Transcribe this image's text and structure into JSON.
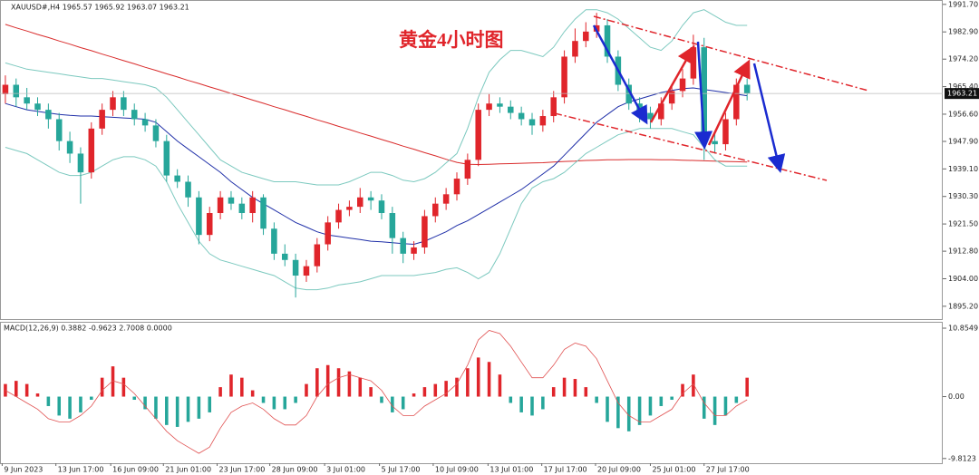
{
  "header": "XAUUSD#,H4  1965.57 1965.92 1963.07 1963.21",
  "chart_data": [
    {
      "type": "candlestick",
      "annotation": "黄金4小时图",
      "up_color": "#e0252b",
      "down_color": "#26a69a",
      "xlim": [
        -0.5,
        87.2
      ],
      "ylim": [
        1891.1,
        1993.1
      ],
      "yticks": [
        {
          "value": 1991.7,
          "label": "1991.70"
        },
        {
          "value": 1982.9,
          "label": "1982.90"
        },
        {
          "value": 1974.2,
          "label": "1974.20"
        },
        {
          "value": 1965.4,
          "label": "1965.40"
        },
        {
          "value": 1956.6,
          "label": "1956.60"
        },
        {
          "value": 1947.9,
          "label": "1947.90"
        },
        {
          "value": 1939.1,
          "label": "1939.10"
        },
        {
          "value": 1930.3,
          "label": "1930.30"
        },
        {
          "value": 1921.5,
          "label": "1921.50"
        },
        {
          "value": 1912.8,
          "label": "1912.80"
        },
        {
          "value": 1904,
          "label": "1904.00"
        },
        {
          "value": 1895.2,
          "label": "1895.20"
        }
      ],
      "last_price": 1963.21,
      "open": [
        1963,
        1966,
        1962,
        1960,
        1958,
        1955,
        1948,
        1944,
        1938,
        1952,
        1958,
        1962,
        1958,
        1955,
        1953,
        1948,
        1937,
        1935,
        1930,
        1918,
        1925,
        1930,
        1928,
        1925,
        1930,
        1920,
        1912,
        1910,
        1905,
        1908,
        1915,
        1922,
        1926,
        1927,
        1930,
        1929,
        1925,
        1917,
        1912,
        1914,
        1924,
        1928,
        1931,
        1936,
        1942,
        1958,
        1960,
        1959,
        1957,
        1955,
        1953,
        1956,
        1962,
        1975,
        1980,
        1983,
        1985,
        1975,
        1966,
        1960,
        1957,
        1955,
        1960,
        1964,
        1968,
        1978,
        1948,
        1947,
        1955,
        1966
      ],
      "high": [
        1969,
        1968,
        1965,
        1962,
        1960,
        1957,
        1951,
        1946,
        1954,
        1960,
        1964,
        1964,
        1960,
        1957,
        1955,
        1950,
        1939,
        1937,
        1932,
        1927,
        1932,
        1932,
        1930,
        1932,
        1931,
        1922,
        1915,
        1912,
        1910,
        1917,
        1924,
        1928,
        1929,
        1933,
        1932,
        1931,
        1927,
        1919,
        1916,
        1926,
        1930,
        1933,
        1938,
        1944,
        1960,
        1963,
        1962,
        1961,
        1959,
        1957,
        1958,
        1964,
        1977,
        1984,
        1986,
        1989,
        1987,
        1977,
        1968,
        1962,
        1959,
        1962,
        1966,
        1971,
        1982,
        1981,
        1951,
        1957,
        1968,
        1968
      ],
      "low": [
        1960,
        1959,
        1958,
        1956,
        1952,
        1945,
        1941,
        1928,
        1936,
        1950,
        1956,
        1956,
        1953,
        1951,
        1946,
        1935,
        1933,
        1927,
        1915,
        1916,
        1923,
        1926,
        1923,
        1922,
        1918,
        1910,
        1908,
        1898,
        1903,
        1906,
        1913,
        1920,
        1924,
        1925,
        1926,
        1923,
        1912,
        1909,
        1910,
        1912,
        1922,
        1926,
        1929,
        1934,
        1940,
        1956,
        1957,
        1955,
        1953,
        1950,
        1951,
        1954,
        1960,
        1973,
        1978,
        1981,
        1973,
        1964,
        1958,
        1954,
        1952,
        1953,
        1958,
        1962,
        1966,
        1942,
        1944,
        1945,
        1953,
        1961
      ],
      "close": [
        1966,
        1962,
        1960,
        1958,
        1955,
        1948,
        1944,
        1938,
        1952,
        1958,
        1962,
        1958,
        1955,
        1953,
        1948,
        1937,
        1935,
        1930,
        1918,
        1925,
        1930,
        1928,
        1925,
        1930,
        1920,
        1912,
        1910,
        1905,
        1908,
        1915,
        1922,
        1926,
        1927,
        1930,
        1929,
        1925,
        1917,
        1912,
        1914,
        1924,
        1928,
        1931,
        1936,
        1942,
        1958,
        1960,
        1959,
        1957,
        1955,
        1953,
        1956,
        1962,
        1975,
        1980,
        1983,
        1985,
        1975,
        1966,
        1960,
        1957,
        1955,
        1960,
        1964,
        1968,
        1978,
        1948,
        1947,
        1955,
        1966,
        1963.21
      ],
      "overlays": [
        {
          "color": "#d92b2b",
          "values": [
            1985.3,
            1984.2,
            1983.2,
            1982.1,
            1981.1,
            1980,
            1979,
            1977.9,
            1976.9,
            1975.8,
            1974.8,
            1973.7,
            1972.7,
            1971.6,
            1970.6,
            1969.5,
            1968.5,
            1967.4,
            1966.4,
            1965.3,
            1964.3,
            1963.2,
            1962.2,
            1961.1,
            1960.1,
            1959,
            1958,
            1956.9,
            1955.9,
            1954.8,
            1953.8,
            1952.7,
            1951.7,
            1950.6,
            1949.6,
            1948.5,
            1947.5,
            1946.4,
            1945.4,
            1944.3,
            1943.3,
            1942.2,
            1941.2,
            1940.6,
            1940.5,
            1940.6,
            1940.7,
            1940.8,
            1940.9,
            1941,
            1941.1,
            1941.3,
            1941.5,
            1941.6,
            1941.8,
            1941.9,
            1942,
            1942,
            1942.1,
            1942.1,
            1942.1,
            1942,
            1942,
            1941.9,
            1941.8,
            1941.7,
            1941.6,
            1941.5,
            1941.4,
            1941.3
          ]
        },
        {
          "color": "#1f2fa8",
          "values": [
            1960,
            1959,
            1958,
            1957.5,
            1957,
            1956.5,
            1956.2,
            1956,
            1956,
            1955.8,
            1955.6,
            1955.4,
            1955.2,
            1955,
            1954,
            1951,
            1948,
            1945.5,
            1943,
            1940.5,
            1938,
            1935,
            1932.5,
            1930,
            1928,
            1926,
            1924,
            1922,
            1920.5,
            1919,
            1918,
            1917.5,
            1917,
            1916.5,
            1916,
            1915.8,
            1915.5,
            1915.2,
            1915,
            1916,
            1917.5,
            1919,
            1921,
            1922.5,
            1924.5,
            1926.5,
            1928.5,
            1930.5,
            1932.5,
            1935,
            1937.5,
            1940,
            1943.5,
            1947,
            1950.5,
            1954,
            1956.5,
            1959,
            1960.5,
            1961.5,
            1962.5,
            1963.5,
            1964.2,
            1964.8,
            1965,
            1964.5,
            1964,
            1963.5,
            1963,
            1962.5
          ]
        },
        {
          "color": "#7cc9bf",
          "values": [
            1973,
            1972,
            1971,
            1970.5,
            1970,
            1969.5,
            1969,
            1968.5,
            1968,
            1968,
            1967.5,
            1967,
            1966.5,
            1966,
            1965,
            1962,
            1958,
            1954,
            1950,
            1946,
            1942,
            1940,
            1938,
            1937,
            1936,
            1935,
            1935,
            1935,
            1934.5,
            1934,
            1934,
            1934,
            1935,
            1936.5,
            1938,
            1938,
            1937,
            1935.5,
            1935,
            1936,
            1938,
            1941,
            1944,
            1952,
            1962,
            1970,
            1974,
            1977,
            1977,
            1976,
            1975,
            1978,
            1983,
            1987,
            1990,
            1990,
            1989,
            1987,
            1984,
            1981,
            1978,
            1977,
            1980,
            1985,
            1989,
            1990,
            1988,
            1986,
            1985,
            1985
          ]
        },
        {
          "color": "#7cc9bf",
          "values": [
            1946,
            1945,
            1944,
            1942,
            1940,
            1938,
            1937,
            1937,
            1938,
            1940,
            1942,
            1943,
            1943,
            1942,
            1940,
            1935,
            1928,
            1922,
            1916,
            1912,
            1910,
            1909,
            1908,
            1907,
            1906,
            1905,
            1903,
            1901,
            1900.5,
            1900.5,
            1901,
            1902,
            1902.5,
            1903,
            1904,
            1905,
            1905,
            1905,
            1905,
            1905.5,
            1906,
            1907,
            1907.5,
            1906,
            1904,
            1906,
            1912,
            1920,
            1928,
            1933,
            1935,
            1936,
            1938,
            1941,
            1944,
            1946,
            1948,
            1950,
            1951,
            1952,
            1952,
            1952,
            1952,
            1951,
            1950,
            1946,
            1942,
            1940,
            1940,
            1940
          ]
        }
      ]
    },
    {
      "type": "macd",
      "label": "MACD(12,26,9) 0.3882 -0.9623 2.7008 0.0000",
      "up_color": "#e0252b",
      "down_color": "#26a69a",
      "line_color": "#e05050",
      "xlim": [
        -0.5,
        87.2
      ],
      "ylim": [
        -10.56,
        11.72
      ],
      "yticks": [
        10.8549,
        {
          "value": 0,
          "label": "0.00"
        },
        -9.8123
      ],
      "xticks": [
        {
          "value": -0.3,
          "label": "9 Jun 2023"
        },
        {
          "value": 4.7,
          "label": "13 Jun 17:00"
        },
        {
          "value": 9.8,
          "label": "16 Jun 09:00"
        },
        {
          "value": 14.7,
          "label": "21 Jun 01:00"
        },
        {
          "value": 19.7,
          "label": "23 Jun 17:00"
        },
        {
          "value": 24.6,
          "label": "28 Jun 09:00"
        },
        {
          "value": 29.7,
          "label": "3 Jul 01:00"
        },
        {
          "value": 34.8,
          "label": "5 Jul 17:00"
        },
        {
          "value": 39.8,
          "label": "10 Jul 09:00"
        },
        {
          "value": 44.9,
          "label": "13 Jul 01:00"
        },
        {
          "value": 49.9,
          "label": "17 Jul 17:00"
        },
        {
          "value": 54.9,
          "label": "20 Jul 09:00"
        },
        {
          "value": 60,
          "label": "25 Jul 01:00"
        },
        {
          "value": 65,
          "label": "27 Jul 17:00"
        }
      ],
      "values": [
        2,
        2.5,
        2,
        0.5,
        -1.5,
        -3,
        -3.5,
        -2.5,
        -0.5,
        3,
        4.8,
        3,
        -0.5,
        -2,
        -3.5,
        -4.5,
        -4.8,
        -4,
        -3.5,
        -2.5,
        1.5,
        3.5,
        3,
        1,
        -1,
        -2,
        -2,
        -1,
        2,
        4.5,
        5,
        4.5,
        4,
        3,
        1.5,
        -1,
        -2.5,
        -2,
        0.5,
        1.5,
        2,
        2.5,
        3,
        4.5,
        6.2,
        5.5,
        3.5,
        -1,
        -2.5,
        -3,
        -2,
        1.5,
        3,
        2.8,
        1.5,
        -1,
        -4,
        -5,
        -5.5,
        -4.5,
        -3,
        -1.5,
        -0.5,
        2,
        3.5,
        -3.5,
        -4.5,
        -3,
        -1,
        3
      ],
      "line": [
        1,
        0,
        -1,
        -2,
        -3.5,
        -4,
        -4,
        -3,
        -1.5,
        1,
        2.5,
        2,
        0.5,
        -1.5,
        -3.5,
        -5.5,
        -7,
        -8,
        -9,
        -8,
        -5,
        -2.5,
        -1.5,
        -1,
        -2,
        -3.5,
        -4.5,
        -4.5,
        -3,
        0,
        2,
        3,
        3.5,
        3,
        2.5,
        1,
        -1.5,
        -3,
        -3,
        -1.5,
        -0.5,
        0.5,
        2,
        5,
        9,
        10.5,
        10,
        8,
        5.5,
        3,
        3,
        5,
        7.5,
        8.5,
        8,
        6,
        2.5,
        -1,
        -3,
        -4,
        -4,
        -3,
        -2,
        0.5,
        2,
        -1,
        -3,
        -3,
        -1.5,
        -0.5
      ]
    }
  ]
}
